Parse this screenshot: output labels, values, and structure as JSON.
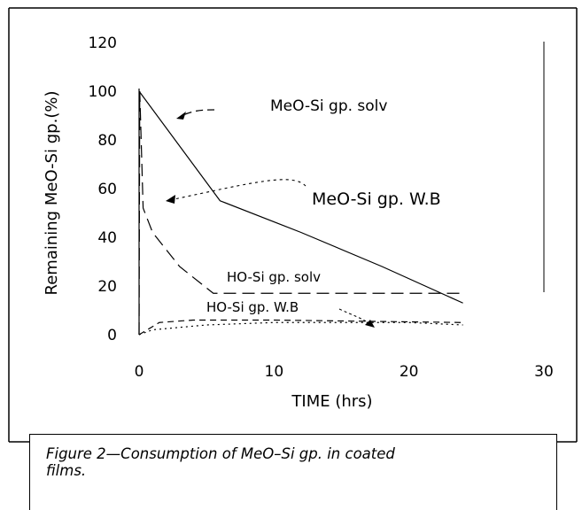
{
  "chart_data": {
    "type": "line",
    "xlabel": "TIME (hrs)",
    "ylabel": "Remaining MeO-Si gp.(%)",
    "xlim": [
      0,
      30
    ],
    "ylim": [
      0,
      120
    ],
    "x_ticks": [
      "0",
      "10",
      "20",
      "30"
    ],
    "y_ticks": [
      "0",
      "20",
      "40",
      "60",
      "80",
      "100",
      "120"
    ],
    "grid": false,
    "series": [
      {
        "name": "MeO-Si gp. solv",
        "style": "solid",
        "x": [
          0,
          6,
          12,
          18,
          24
        ],
        "y": [
          100,
          55,
          42,
          28,
          13
        ]
      },
      {
        "name": "MeO-Si gp. W.B",
        "style": "long-dash",
        "x": [
          0,
          0.05,
          0.3,
          1,
          3,
          5.5,
          24
        ],
        "y": [
          0,
          100,
          52,
          42,
          28,
          17,
          17
        ]
      },
      {
        "name": "HO-Si gp. solv",
        "style": "dash",
        "x": [
          0,
          1.5,
          4,
          10,
          24
        ],
        "y": [
          0,
          5,
          6,
          6,
          5
        ]
      },
      {
        "name": "HO-Si gp. W.B",
        "style": "dotted",
        "x": [
          0,
          1,
          5,
          10,
          20,
          24
        ],
        "y": [
          0,
          2,
          4,
          5,
          5,
          4
        ]
      }
    ],
    "annotations": [
      "MeO-Si gp. solv",
      "MeO-Si gp. W.B",
      "HO-Si gp. solv",
      "HO-Si gp. W.B"
    ]
  },
  "caption": {
    "text": "Figure 2—Consumption of MeO–Si gp. in coated films."
  }
}
